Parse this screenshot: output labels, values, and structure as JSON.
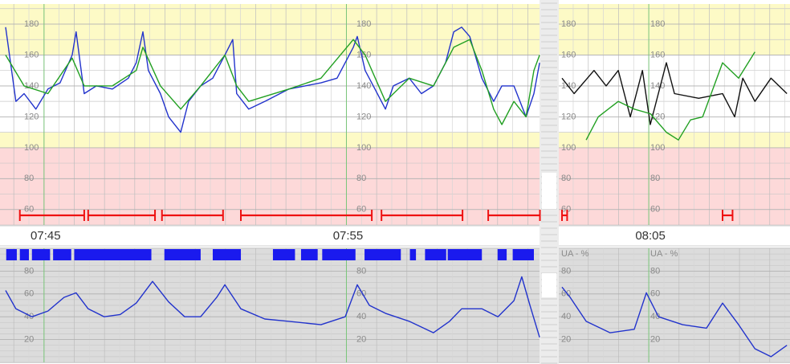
{
  "chart_data": [
    {
      "type": "line",
      "xlim": [
        -1.27,
        24.67
      ],
      "xticks": [
        {
          "value": 0,
          "label": "07:45"
        },
        {
          "value": 10,
          "label": "07:55"
        },
        {
          "value": 20,
          "label": "08:05"
        }
      ],
      "ylim": [
        50,
        193
      ],
      "yticks": [
        60,
        80,
        100,
        120,
        140,
        160,
        180
      ],
      "bands": [
        {
          "from": 160,
          "to": 193,
          "color": "#fdfac6"
        },
        {
          "from": 110,
          "to": 160,
          "color": "#ffffff"
        },
        {
          "from": 100,
          "to": 110,
          "color": "#fdfac6"
        },
        {
          "from": 50,
          "to": 100,
          "color": "#fdd9d9"
        }
      ],
      "grid": true,
      "series": [
        {
          "color": "#2233cc",
          "x": [
            -1.27,
            -0.93,
            -0.66,
            -0.27,
            0.13,
            0.53,
            0.93,
            1.06,
            1.33,
            1.73,
            2.26,
            2.79,
            3.05,
            3.27,
            3.45,
            3.85,
            4.12,
            4.52,
            4.78,
            5.18,
            5.58,
            5.98,
            6.24,
            6.37,
            6.77,
            7.3,
            8.1,
            8.63,
            9.16,
            9.69,
            10.23,
            10.36,
            10.62,
            10.89,
            11.29,
            11.55,
            12.08,
            12.48,
            12.88,
            13.28,
            13.55,
            13.81,
            14.08,
            14.48,
            14.87,
            15.14,
            15.54,
            15.94,
            16.2,
            16.39
          ],
          "values": [
            178,
            130,
            135,
            125,
            138,
            142,
            160,
            175,
            135,
            140,
            138,
            145,
            155,
            175,
            150,
            135,
            120,
            110,
            130,
            140,
            145,
            160,
            170,
            135,
            125,
            130,
            138,
            140,
            142,
            145,
            165,
            172,
            150,
            140,
            125,
            140,
            145,
            135,
            140,
            155,
            175,
            178,
            172,
            145,
            130,
            140,
            140,
            120,
            135,
            155
          ]
        },
        {
          "color": "#22a022",
          "x": [
            -1.27,
            -0.66,
            0.13,
            0.93,
            1.33,
            2.26,
            3.05,
            3.27,
            3.85,
            4.52,
            5.18,
            5.98,
            6.37,
            6.77,
            8.1,
            9.16,
            10.23,
            10.62,
            11.29,
            12.08,
            12.88,
            13.55,
            14.08,
            14.48,
            14.87,
            15.14,
            15.54,
            15.94,
            16.2,
            16.39
          ],
          "values": [
            160,
            140,
            135,
            158,
            140,
            140,
            150,
            165,
            140,
            125,
            140,
            160,
            140,
            130,
            138,
            145,
            170,
            160,
            130,
            145,
            140,
            165,
            170,
            150,
            125,
            115,
            130,
            120,
            150,
            160
          ]
        },
        {
          "color": "#111111",
          "x": [
            17.13,
            17.53,
            18.19,
            18.59,
            18.99,
            19.39,
            19.79,
            20.05,
            20.58,
            20.85,
            21.65,
            22.44,
            22.84,
            23.11,
            23.51,
            24.04,
            24.57
          ],
          "values": [
            145,
            135,
            150,
            140,
            150,
            120,
            150,
            115,
            155,
            135,
            132,
            135,
            120,
            145,
            130,
            145,
            135
          ]
        },
        {
          "color": "#22a022",
          "x": [
            17.93,
            18.33,
            18.99,
            19.52,
            20.05,
            20.58,
            20.98,
            21.38,
            21.78,
            22.44,
            22.97,
            23.51
          ],
          "values": [
            105,
            120,
            130,
            125,
            122,
            110,
            105,
            118,
            120,
            155,
            145,
            162
          ]
        }
      ],
      "segments": [
        [
          -0.8,
          1.33
        ],
        [
          1.46,
          3.67
        ],
        [
          3.9,
          5.92
        ],
        [
          6.51,
          10.84
        ],
        [
          11.16,
          13.84
        ],
        [
          14.69,
          16.4
        ],
        [
          17.13,
          17.3
        ],
        [
          22.44,
          22.77
        ]
      ],
      "segment_color": "#ee1111"
    },
    {
      "type": "line",
      "y_label": "UA - %",
      "ylim": [
        0,
        100
      ],
      "yticks": [
        20,
        40,
        60,
        80
      ],
      "background": "#dcdcdc",
      "grid": true,
      "series": [
        {
          "color": "#2233cc",
          "x": [
            -1.27,
            -0.93,
            -0.4,
            0.13,
            0.66,
            1.06,
            1.46,
            1.99,
            2.52,
            3.05,
            3.59,
            4.12,
            4.65,
            5.18,
            5.71,
            5.98,
            6.51,
            7.3,
            8.1,
            9.16,
            9.96,
            10.36,
            10.76,
            11.29,
            12.08,
            12.88,
            13.41,
            13.81,
            14.48,
            15.01,
            15.54,
            15.8,
            16.07,
            16.39,
            16.7,
            17.13,
            17.4,
            17.93,
            18.72,
            19.52,
            19.92,
            20.32,
            21.12,
            21.91,
            22.44,
            22.97,
            23.51,
            24.04,
            24.57
          ],
          "values": [
            63,
            47,
            40,
            45,
            57,
            61,
            47,
            40,
            42,
            52,
            71,
            53,
            40,
            40,
            57,
            68,
            47,
            38,
            36,
            33,
            40,
            68,
            50,
            43,
            36,
            26,
            36,
            47,
            47,
            40,
            54,
            75,
            50,
            22,
            null,
            66,
            57,
            36,
            26,
            29,
            61,
            40,
            33,
            30,
            52,
            33,
            12,
            5,
            15
          ]
        }
      ],
      "movements": [
        [
          -1.25,
          -0.9
        ],
        [
          -0.8,
          -0.5
        ],
        [
          -0.4,
          0.2
        ],
        [
          0.3,
          0.9
        ],
        [
          1.0,
          3.55
        ],
        [
          3.98,
          5.18
        ],
        [
          5.58,
          6.51
        ],
        [
          7.57,
          8.3
        ],
        [
          8.5,
          9.05
        ],
        [
          9.2,
          10.3
        ],
        [
          10.6,
          11.8
        ],
        [
          12.1,
          12.3
        ],
        [
          12.6,
          13.3
        ],
        [
          13.35,
          14.48
        ],
        [
          15.0,
          15.3
        ],
        [
          15.5,
          16.2
        ]
      ],
      "movement_color": "#1a1aee"
    }
  ]
}
